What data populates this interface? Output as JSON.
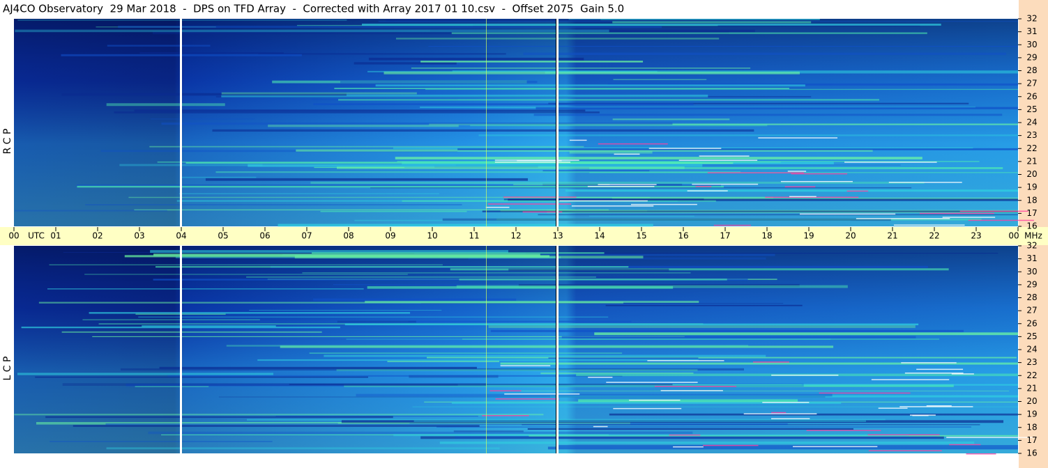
{
  "chart_data": {
    "type": "spectrogram",
    "title": "AJ4CO Observatory  29 Mar 2018  -  DPS on TFD Array  -  Corrected with Array 2017 01 10.csv  -  Offset 2075  Gain 5.0",
    "panels": [
      {
        "name": "R C P"
      },
      {
        "name": "L C P"
      }
    ],
    "xlabel": "UTC",
    "ylabel": "MHz",
    "xlim": [
      0,
      24
    ],
    "xticks": [
      {
        "value": 0,
        "label": "00"
      },
      {
        "value": 1,
        "label": "01"
      },
      {
        "value": 2,
        "label": "02"
      },
      {
        "value": 3,
        "label": "03"
      },
      {
        "value": 4,
        "label": "04"
      },
      {
        "value": 5,
        "label": "05"
      },
      {
        "value": 6,
        "label": "06"
      },
      {
        "value": 7,
        "label": "07"
      },
      {
        "value": 8,
        "label": "08"
      },
      {
        "value": 9,
        "label": "09"
      },
      10,
      11,
      12,
      13,
      14,
      15,
      16,
      17,
      18,
      19,
      20,
      21,
      22,
      23,
      {
        "value": 24,
        "label": "00"
      }
    ],
    "ylim": [
      16,
      32
    ],
    "yticks": [
      16,
      17,
      18,
      19,
      20,
      21,
      22,
      23,
      24,
      25,
      26,
      27,
      28,
      29,
      30,
      31,
      32
    ]
  }
}
